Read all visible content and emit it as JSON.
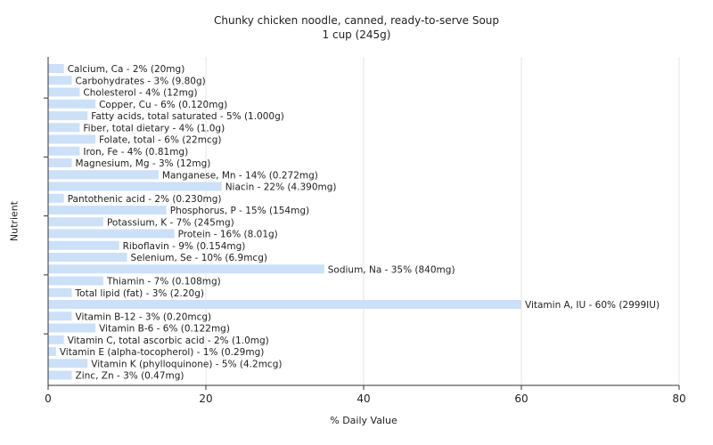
{
  "chart_data": {
    "type": "bar",
    "orientation": "horizontal",
    "title": "Chunky chicken noodle, canned, ready-to-serve Soup",
    "subtitle": "1 cup (245g)",
    "xlabel": "% Daily Value",
    "ylabel": "Nutrient",
    "xlim": [
      0,
      80
    ],
    "xticks": [
      "0",
      "20",
      "40",
      "60",
      "80"
    ],
    "grid": "vertical",
    "bar_color": "#cce0f8",
    "bars": [
      {
        "label": "Calcium, Ca - 2% (20mg)",
        "value": 2
      },
      {
        "label": "Carbohydrates - 3% (9.80g)",
        "value": 3
      },
      {
        "label": "Cholesterol - 4% (12mg)",
        "value": 4
      },
      {
        "label": "Copper, Cu - 6% (0.120mg)",
        "value": 6
      },
      {
        "label": "Fatty acids, total saturated - 5% (1.000g)",
        "value": 5
      },
      {
        "label": "Fiber, total dietary - 4% (1.0g)",
        "value": 4
      },
      {
        "label": "Folate, total - 6% (22mcg)",
        "value": 6
      },
      {
        "label": "Iron, Fe - 4% (0.81mg)",
        "value": 4
      },
      {
        "label": "Magnesium, Mg - 3% (12mg)",
        "value": 3
      },
      {
        "label": "Manganese, Mn - 14% (0.272mg)",
        "value": 14
      },
      {
        "label": "Niacin - 22% (4.390mg)",
        "value": 22
      },
      {
        "label": "Pantothenic acid - 2% (0.230mg)",
        "value": 2
      },
      {
        "label": "Phosphorus, P - 15% (154mg)",
        "value": 15
      },
      {
        "label": "Potassium, K - 7% (245mg)",
        "value": 7
      },
      {
        "label": "Protein - 16% (8.01g)",
        "value": 16
      },
      {
        "label": "Riboflavin - 9% (0.154mg)",
        "value": 9
      },
      {
        "label": "Selenium, Se - 10% (6.9mcg)",
        "value": 10
      },
      {
        "label": "Sodium, Na - 35% (840mg)",
        "value": 35
      },
      {
        "label": "Thiamin - 7% (0.108mg)",
        "value": 7
      },
      {
        "label": "Total lipid (fat) - 3% (2.20g)",
        "value": 3
      },
      {
        "label": "Vitamin A, IU - 60% (2999IU)",
        "value": 60
      },
      {
        "label": "Vitamin B-12 - 3% (0.20mcg)",
        "value": 3
      },
      {
        "label": "Vitamin B-6 - 6% (0.122mg)",
        "value": 6
      },
      {
        "label": "Vitamin C, total ascorbic acid - 2% (1.0mg)",
        "value": 2
      },
      {
        "label": "Vitamin E (alpha-tocopherol) - 1% (0.29mg)",
        "value": 1
      },
      {
        "label": "Vitamin K (phylloquinone) - 5% (4.2mcg)",
        "value": 5
      },
      {
        "label": "Zinc, Zn - 3% (0.47mg)",
        "value": 3
      }
    ]
  }
}
